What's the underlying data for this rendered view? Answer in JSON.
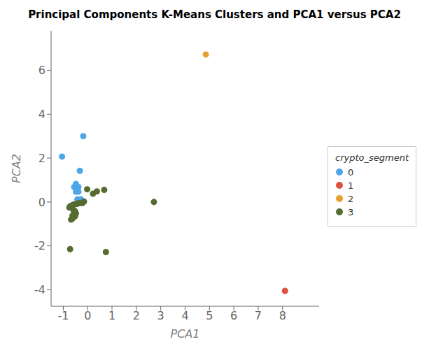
{
  "chart_data": {
    "type": "scatter",
    "title": "Principal Components K-Means Clusters and PCA1 versus PCA2",
    "xlabel": "PCA1",
    "ylabel": "PCA2",
    "xlim": [
      -1.5,
      9.5
    ],
    "ylim": [
      -4.75,
      7.8
    ],
    "xticks": [
      -1,
      0,
      1,
      2,
      3,
      4,
      5,
      6,
      7,
      8
    ],
    "yticks": [
      -4,
      -2,
      0,
      2,
      4,
      6
    ],
    "grid": false,
    "legend": "right",
    "legend_title": "crypto_segment",
    "series": [
      {
        "name": "0",
        "color": "#4DA6E8",
        "x": [
          -1.05,
          -0.18,
          -0.32,
          -0.48,
          -0.55,
          -0.38,
          -0.48,
          -0.38,
          -0.28,
          -0.42
        ],
        "y": [
          2.07,
          3.0,
          1.42,
          0.82,
          0.68,
          0.68,
          0.47,
          0.47,
          0.12,
          0.12
        ]
      },
      {
        "name": "1",
        "color": "#E05040",
        "x": [
          8.1
        ],
        "y": [
          -4.05
        ]
      },
      {
        "name": "2",
        "color": "#E8A030",
        "x": [
          4.85
        ],
        "y": [
          6.72
        ]
      },
      {
        "name": "3",
        "color": "#556B2F",
        "x": [
          -0.02,
          0.38,
          0.68,
          0.22,
          -0.15,
          -0.22,
          -0.35,
          -0.42,
          -0.52,
          -0.58,
          -0.62,
          -0.68,
          -0.72,
          -0.75,
          -0.58,
          -0.52,
          -0.48,
          -0.62,
          -0.52,
          -0.62,
          -0.68,
          -0.72,
          0.75,
          2.72
        ],
        "y": [
          0.58,
          0.48,
          0.55,
          0.38,
          0.02,
          -0.05,
          -0.05,
          -0.08,
          -0.1,
          -0.12,
          -0.15,
          -0.18,
          -0.2,
          -0.25,
          -0.38,
          -0.42,
          -0.52,
          -0.62,
          -0.65,
          -0.75,
          -0.8,
          -2.15,
          -2.28,
          0.0
        ]
      }
    ]
  }
}
